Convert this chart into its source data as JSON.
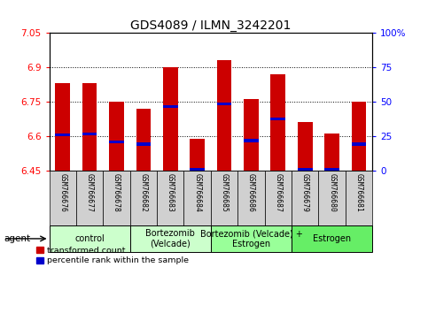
{
  "title": "GDS4089 / ILMN_3242201",
  "samples": [
    "GSM766676",
    "GSM766677",
    "GSM766678",
    "GSM766682",
    "GSM766683",
    "GSM766684",
    "GSM766685",
    "GSM766686",
    "GSM766687",
    "GSM766679",
    "GSM766680",
    "GSM766681"
  ],
  "bar_values": [
    6.83,
    6.83,
    6.75,
    6.72,
    6.9,
    6.59,
    6.93,
    6.76,
    6.87,
    6.66,
    6.61,
    6.75
  ],
  "blue_values": [
    6.605,
    6.61,
    6.575,
    6.565,
    6.73,
    6.455,
    6.74,
    6.58,
    6.675,
    6.455,
    6.455,
    6.565
  ],
  "ymin": 6.45,
  "ymax": 7.05,
  "yticks": [
    6.45,
    6.6,
    6.75,
    6.9,
    7.05
  ],
  "ytick_labels": [
    "6.45",
    "6.6",
    "6.75",
    "6.9",
    "7.05"
  ],
  "right_ytick_labels": [
    "0",
    "25",
    "50",
    "75",
    "100%"
  ],
  "bar_color": "#cc0000",
  "blue_color": "#0000cc",
  "bar_width": 0.55,
  "grid_lines": [
    6.6,
    6.75,
    6.9
  ],
  "group_defs": [
    {
      "label": "control",
      "start": 0,
      "end": 2,
      "color": "#ccffcc"
    },
    {
      "label": "Bortezomib\n(Velcade)",
      "start": 3,
      "end": 5,
      "color": "#ccffcc"
    },
    {
      "label": "Bortezomib (Velcade) +\nEstrogen",
      "start": 6,
      "end": 8,
      "color": "#99ff99"
    },
    {
      "label": "Estrogen",
      "start": 9,
      "end": 11,
      "color": "#66ee66"
    }
  ],
  "legend_red": "transformed count",
  "legend_blue": "percentile rank within the sample",
  "title_fontsize": 10,
  "tick_fontsize": 7.5,
  "label_fontsize": 7,
  "group_fontsize": 7
}
